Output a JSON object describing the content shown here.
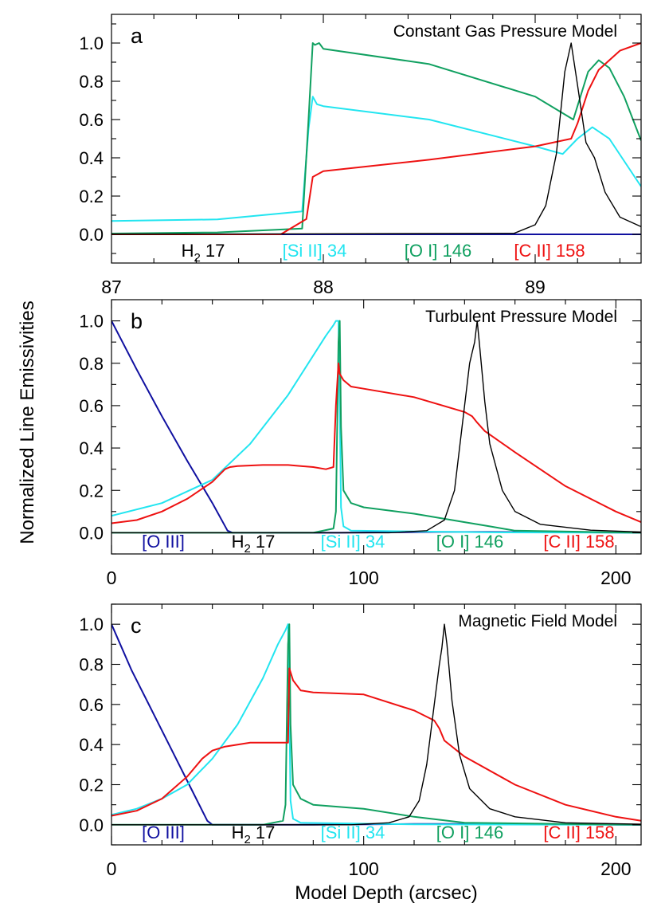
{
  "figure": {
    "ylabel": "Normalized Line Emissivities",
    "xlabel": "Model Depth (arcsec)"
  },
  "chart_data": [
    {
      "type": "line",
      "panel_letter": "a",
      "title": "Constant Gas Pressure Model",
      "xlim": [
        87,
        89.5
      ],
      "ylim": [
        -0.15,
        1.15
      ],
      "x_ticks": [
        87,
        88,
        89
      ],
      "x_tick_labels": [
        "87",
        "88",
        "89"
      ],
      "y_ticks": [
        0.0,
        0.2,
        0.4,
        0.6,
        0.8,
        1.0
      ],
      "y_tick_labels": [
        "0.0",
        "0.2",
        "0.4",
        "0.6",
        "0.8",
        "1.0"
      ],
      "legend_labels": [
        {
          "text": "H",
          "sub": "2",
          "rest": " 17",
          "color": "#000000"
        },
        {
          "text": "[Si II] 34",
          "color": "#22e5f0"
        },
        {
          "text": "[O I] 146",
          "color": "#10a060"
        },
        {
          "text": "[C II] 158",
          "color": "#ee1111"
        }
      ],
      "series": [
        {
          "color": "#1010a0",
          "x": [
            87,
            89.5
          ],
          "y": [
            0,
            0
          ]
        },
        {
          "color": "#22e5f0",
          "x": [
            87,
            87.5,
            87.9,
            87.93,
            87.95,
            87.97,
            88.0,
            88.5,
            89.0,
            89.13,
            89.2,
            89.27,
            89.35,
            89.5
          ],
          "y": [
            0.07,
            0.078,
            0.12,
            0.55,
            0.72,
            0.68,
            0.67,
            0.6,
            0.46,
            0.42,
            0.5,
            0.56,
            0.5,
            0.25
          ]
        },
        {
          "color": "#10a060",
          "x": [
            87,
            87.5,
            87.9,
            87.93,
            87.95,
            87.96,
            87.98,
            88.0,
            88.5,
            89.0,
            89.18,
            89.25,
            89.3,
            89.35,
            89.42,
            89.5
          ],
          "y": [
            0.004,
            0.01,
            0.03,
            0.6,
            1.0,
            0.99,
            1.0,
            0.97,
            0.89,
            0.72,
            0.6,
            0.85,
            0.91,
            0.87,
            0.72,
            0.49
          ]
        },
        {
          "color": "#ee1111",
          "x": [
            87,
            87.8,
            87.92,
            87.95,
            88.0,
            88.5,
            89.0,
            89.17,
            89.2,
            89.25,
            89.3,
            89.4,
            89.5
          ],
          "y": [
            0,
            0.0005,
            0.08,
            0.3,
            0.33,
            0.39,
            0.46,
            0.5,
            0.58,
            0.75,
            0.86,
            0.96,
            1.0
          ]
        },
        {
          "color": "#000000",
          "x": [
            87,
            88.9,
            89.0,
            89.05,
            89.1,
            89.14,
            89.17,
            89.2,
            89.24,
            89.28,
            89.33,
            89.4,
            89.5
          ],
          "y": [
            0,
            0.005,
            0.05,
            0.15,
            0.42,
            0.85,
            1.0,
            0.78,
            0.48,
            0.4,
            0.22,
            0.09,
            0.04
          ]
        }
      ]
    },
    {
      "type": "line",
      "panel_letter": "b",
      "title": "Turbulent Pressure Model",
      "xlim": [
        0,
        210
      ],
      "ylim": [
        -0.1,
        1.1
      ],
      "x_ticks": [
        0,
        100,
        200
      ],
      "x_tick_labels": [
        "0",
        "100",
        "200"
      ],
      "y_ticks": [
        0.0,
        0.2,
        0.4,
        0.6,
        0.8,
        1.0
      ],
      "y_tick_labels": [
        "0.0",
        "0.2",
        "0.4",
        "0.6",
        "0.8",
        "1.0"
      ],
      "legend_labels": [
        {
          "text": "[O III]",
          "color": "#1010a0"
        },
        {
          "text": "H",
          "sub": "2",
          "rest": " 17",
          "color": "#000000"
        },
        {
          "text": "[Si II] 34",
          "color": "#22e5f0"
        },
        {
          "text": "[O I] 146",
          "color": "#10a060"
        },
        {
          "text": "[C II] 158",
          "color": "#ee1111"
        }
      ],
      "series": [
        {
          "color": "#1010a0",
          "x": [
            0,
            10,
            20,
            30,
            40,
            46,
            48,
            90,
            130,
            150,
            210
          ],
          "y": [
            1.0,
            0.77,
            0.55,
            0.34,
            0.14,
            0.01,
            0,
            0,
            0.004,
            0.004,
            0
          ]
        },
        {
          "color": "#22e5f0",
          "x": [
            0,
            20,
            40,
            55,
            70,
            85,
            88,
            89,
            90,
            90.5,
            91,
            92,
            95,
            150,
            210
          ],
          "y": [
            0.08,
            0.14,
            0.25,
            0.42,
            0.65,
            0.93,
            0.98,
            1.0,
            1.0,
            0.6,
            0.12,
            0.03,
            0.01,
            0.002,
            0
          ]
        },
        {
          "color": "#10a060",
          "x": [
            0,
            80,
            88,
            89,
            89.5,
            90,
            90.5,
            91,
            92,
            95,
            100,
            120,
            140,
            150,
            160,
            210
          ],
          "y": [
            0,
            0,
            0.02,
            0.1,
            0.5,
            0.9,
            1.0,
            0.5,
            0.2,
            0.14,
            0.12,
            0.09,
            0.05,
            0.03,
            0.01,
            0
          ]
        },
        {
          "color": "#ee1111",
          "x": [
            0,
            10,
            20,
            30,
            40,
            45,
            47,
            50,
            60,
            70,
            80,
            85,
            88,
            89,
            90,
            90.5,
            92,
            95,
            100,
            120,
            140,
            143,
            145,
            148,
            160,
            180,
            200,
            210
          ],
          "y": [
            0.045,
            0.06,
            0.1,
            0.16,
            0.24,
            0.3,
            0.31,
            0.315,
            0.32,
            0.32,
            0.31,
            0.3,
            0.31,
            0.6,
            0.8,
            0.75,
            0.72,
            0.69,
            0.68,
            0.64,
            0.57,
            0.55,
            0.52,
            0.48,
            0.38,
            0.22,
            0.1,
            0.05
          ]
        },
        {
          "color": "#000000",
          "x": [
            0,
            110,
            125,
            132,
            136,
            139,
            142,
            143,
            144,
            145,
            146,
            148,
            150,
            155,
            160,
            170,
            190,
            210
          ],
          "y": [
            0,
            0,
            0.01,
            0.06,
            0.2,
            0.5,
            0.8,
            0.85,
            0.9,
            1.0,
            0.88,
            0.62,
            0.42,
            0.2,
            0.1,
            0.04,
            0.012,
            0.004
          ]
        }
      ]
    },
    {
      "type": "line",
      "panel_letter": "c",
      "title": "Magnetic Field Model",
      "xlim": [
        0,
        210
      ],
      "ylim": [
        -0.1,
        1.1
      ],
      "x_ticks": [
        0,
        100,
        200
      ],
      "x_tick_labels": [
        "0",
        "100",
        "200"
      ],
      "y_ticks": [
        0.0,
        0.2,
        0.4,
        0.6,
        0.8,
        1.0
      ],
      "y_tick_labels": [
        "0.0",
        "0.2",
        "0.4",
        "0.6",
        "0.8",
        "1.0"
      ],
      "legend_labels": [
        {
          "text": "[O III]",
          "color": "#1010a0"
        },
        {
          "text": "H",
          "sub": "2",
          "rest": " 17",
          "color": "#000000"
        },
        {
          "text": "[Si II] 34",
          "color": "#22e5f0"
        },
        {
          "text": "[O I] 146",
          "color": "#10a060"
        },
        {
          "text": "[C II] 158",
          "color": "#ee1111"
        }
      ],
      "series": [
        {
          "color": "#1010a0",
          "x": [
            0,
            8,
            16,
            24,
            32,
            38,
            40,
            80,
            120,
            140,
            210
          ],
          "y": [
            1.0,
            0.77,
            0.57,
            0.37,
            0.17,
            0.02,
            0,
            0,
            0.004,
            0.004,
            0
          ]
        },
        {
          "color": "#22e5f0",
          "x": [
            0,
            10,
            20,
            30,
            40,
            50,
            60,
            66,
            69,
            70,
            70.5,
            71,
            72,
            75,
            120,
            210
          ],
          "y": [
            0.05,
            0.08,
            0.13,
            0.2,
            0.33,
            0.5,
            0.73,
            0.9,
            0.97,
            1.0,
            0.6,
            0.12,
            0.03,
            0.01,
            0.002,
            0
          ]
        },
        {
          "color": "#10a060",
          "x": [
            0,
            60,
            68,
            69,
            69.5,
            70,
            70.5,
            71,
            72,
            75,
            80,
            100,
            120,
            140,
            210
          ],
          "y": [
            0,
            0,
            0.02,
            0.1,
            0.5,
            0.9,
            1.0,
            0.5,
            0.2,
            0.13,
            0.1,
            0.08,
            0.04,
            0.01,
            0
          ]
        },
        {
          "color": "#ee1111",
          "x": [
            0,
            10,
            20,
            30,
            36,
            40,
            45,
            55,
            65,
            70,
            70.5,
            72,
            75,
            80,
            100,
            120,
            128,
            130,
            132,
            140,
            160,
            180,
            200,
            210
          ],
          "y": [
            0.045,
            0.07,
            0.13,
            0.24,
            0.33,
            0.37,
            0.39,
            0.41,
            0.41,
            0.41,
            0.78,
            0.72,
            0.67,
            0.66,
            0.65,
            0.57,
            0.52,
            0.48,
            0.42,
            0.34,
            0.2,
            0.1,
            0.04,
            0.02
          ]
        },
        {
          "color": "#000000",
          "x": [
            0,
            95,
            110,
            118,
            122,
            125,
            128,
            130,
            131,
            132,
            133,
            135,
            138,
            142,
            150,
            160,
            180,
            210
          ],
          "y": [
            0,
            0,
            0.01,
            0.04,
            0.12,
            0.3,
            0.6,
            0.8,
            0.88,
            1.0,
            0.9,
            0.62,
            0.35,
            0.18,
            0.08,
            0.04,
            0.01,
            0.003
          ]
        }
      ]
    }
  ]
}
